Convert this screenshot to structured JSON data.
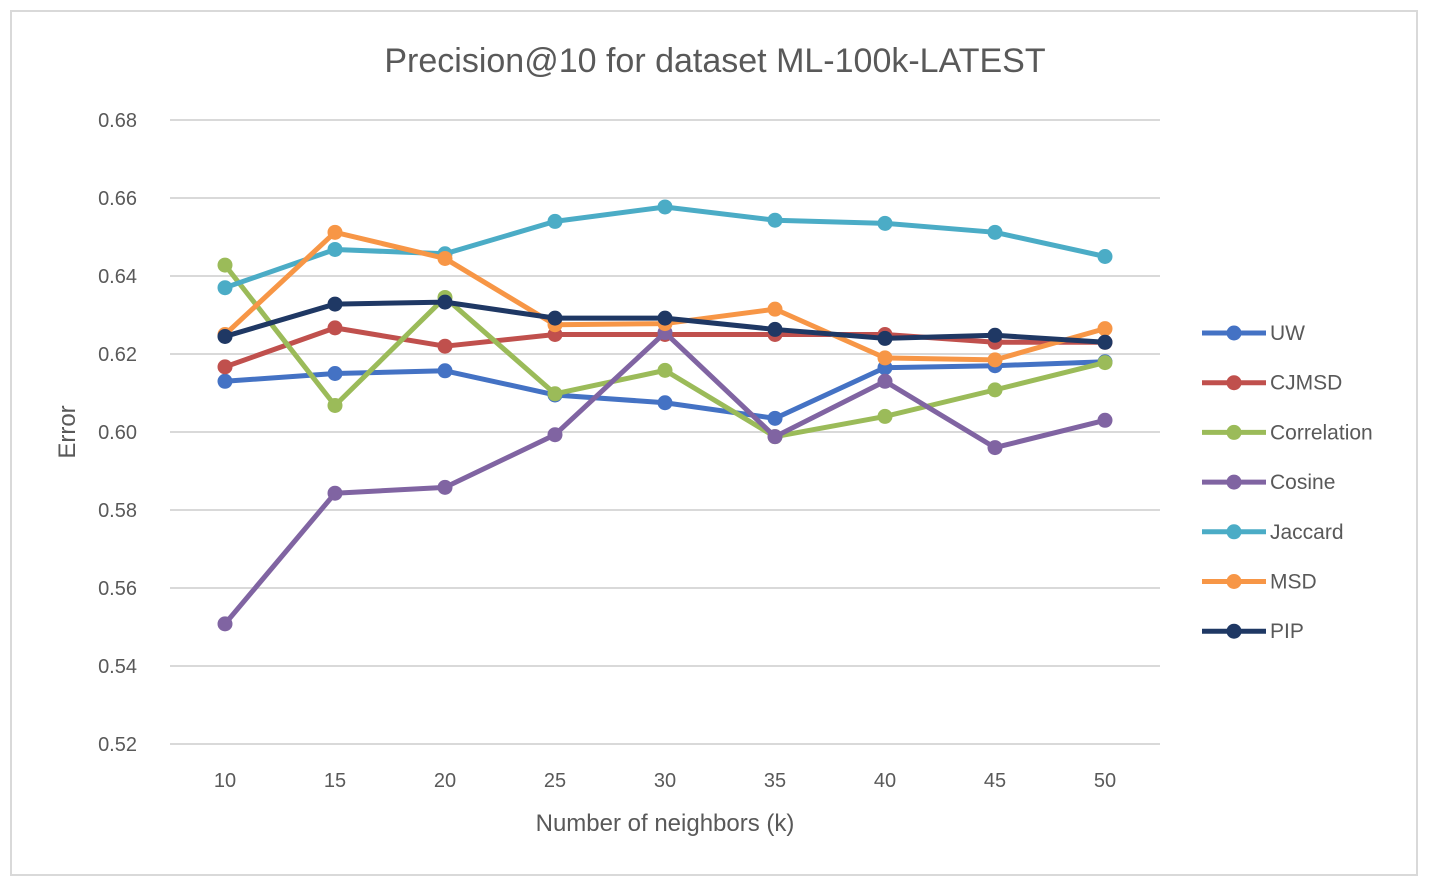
{
  "chart_data": {
    "type": "line",
    "title": "Precision@10 for dataset ML-100k-LATEST",
    "xlabel": "Number of neighbors (k)",
    "ylabel": "Error",
    "categories": [
      "10",
      "15",
      "20",
      "25",
      "30",
      "35",
      "40",
      "45",
      "50"
    ],
    "ylim": [
      0.52,
      0.68
    ],
    "yticks": [
      "0.52",
      "0.54",
      "0.56",
      "0.58",
      "0.60",
      "0.62",
      "0.64",
      "0.66",
      "0.68"
    ],
    "grid": true,
    "legend_position": "right",
    "series": [
      {
        "name": "UW",
        "color": "#4472c4",
        "values": [
          0.613,
          0.615,
          0.6157,
          0.6095,
          0.6075,
          0.6035,
          0.6165,
          0.617,
          0.618
        ]
      },
      {
        "name": "CJMSD",
        "color": "#c0504d",
        "values": [
          0.6167,
          0.6267,
          0.622,
          0.625,
          0.625,
          0.625,
          0.625,
          0.623,
          0.623
        ]
      },
      {
        "name": "Correlation",
        "color": "#9bbb59",
        "values": [
          0.6428,
          0.6068,
          0.6345,
          0.6098,
          0.6158,
          0.5988,
          0.604,
          0.6108,
          0.6178
        ]
      },
      {
        "name": "Cosine",
        "color": "#8064a2",
        "values": [
          0.5508,
          0.5843,
          0.5858,
          0.5993,
          0.6255,
          0.5988,
          0.613,
          0.596,
          0.603
        ]
      },
      {
        "name": "Jaccard",
        "color": "#4bacc6",
        "values": [
          0.637,
          0.6468,
          0.6457,
          0.654,
          0.6577,
          0.6543,
          0.6535,
          0.6512,
          0.645
        ]
      },
      {
        "name": "MSD",
        "color": "#f79646",
        "values": [
          0.625,
          0.6512,
          0.6445,
          0.6275,
          0.6278,
          0.6315,
          0.619,
          0.6185,
          0.6265
        ]
      },
      {
        "name": "PIP",
        "color": "#1f3864",
        "values": [
          0.6245,
          0.6328,
          0.6333,
          0.6292,
          0.6292,
          0.6263,
          0.624,
          0.6248,
          0.623
        ]
      }
    ]
  }
}
